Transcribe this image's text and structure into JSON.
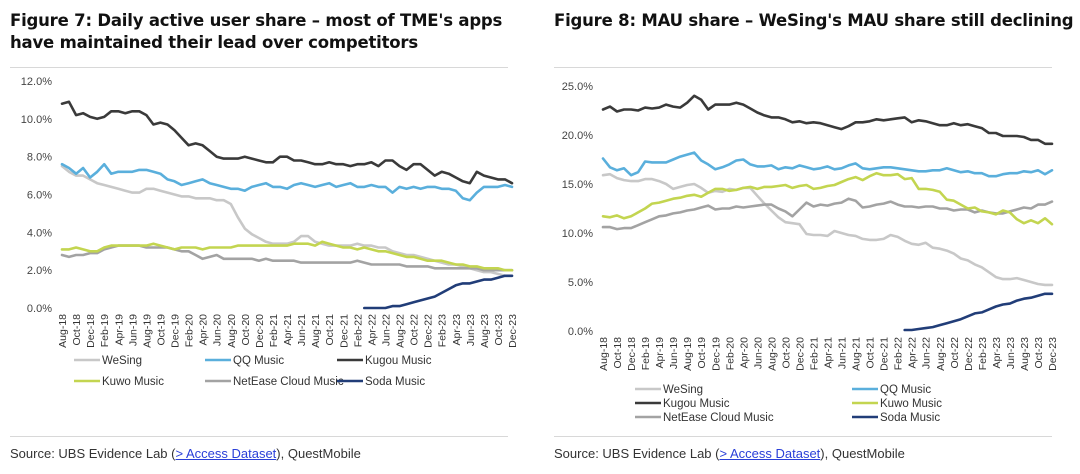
{
  "figure7": {
    "title": "Figure 7: Daily active user share – most of TME's apps have maintained their lead over competitors",
    "source_prefix": "Source: UBS Evidence Lab (",
    "source_link": "> Access Dataset",
    "source_suffix": "), QuestMobile"
  },
  "figure8": {
    "title": "Figure 8: MAU share – WeSing's MAU share still declining",
    "source_prefix": "Source: UBS Evidence Lab (",
    "source_link": "> Access Dataset",
    "source_suffix": "), QuestMobile"
  },
  "colors": {
    "WeSing": "#c8c8c8",
    "QQ Music": "#5aafdc",
    "Kugou Music": "#3a3a3a",
    "Kuwo Music": "#c3d550",
    "NetEase Cloud Music": "#a3a3a3",
    "Soda Music": "#213d78",
    "link": "#2a3fd8"
  },
  "chart_data": [
    {
      "type": "line",
      "title": "Figure 7: Daily active user share – most of TME's apps have maintained their lead over competitors",
      "ylabel": "",
      "xlabel": "",
      "ylim": [
        0,
        12
      ],
      "yticks": [
        "0.0%",
        "2.0%",
        "4.0%",
        "6.0%",
        "8.0%",
        "10.0%",
        "12.0%"
      ],
      "ytick_values": [
        0,
        2,
        4,
        6,
        8,
        10,
        12
      ],
      "x_tick_labels": [
        "Aug-18",
        "Oct-18",
        "Dec-18",
        "Feb-19",
        "Apr-19",
        "Jun-19",
        "Aug-19",
        "Oct-19",
        "Dec-19",
        "Feb-20",
        "Apr-20",
        "Jun-20",
        "Aug-20",
        "Oct-20",
        "Dec-20",
        "Feb-21",
        "Apr-21",
        "Jun-21",
        "Aug-21",
        "Oct-21",
        "Dec-21",
        "Feb-22",
        "Apr-22",
        "Jun-22",
        "Aug-22",
        "Oct-22",
        "Dec-22",
        "Feb-23",
        "Apr-23",
        "Jun-23",
        "Aug-23",
        "Oct-23",
        "Dec-23"
      ],
      "legend": [
        "WeSing",
        "QQ Music",
        "Kugou Music",
        "Kuwo Music",
        "NetEase Cloud Music",
        "Soda Music"
      ],
      "legend_position": "bottom",
      "grid": false,
      "series": [
        {
          "name": "WeSing",
          "start_index": 0,
          "values": [
            7.5,
            7.2,
            7.0,
            7.0,
            6.8,
            6.6,
            6.5,
            6.4,
            6.3,
            6.2,
            6.1,
            6.1,
            6.3,
            6.3,
            6.2,
            6.1,
            6.0,
            5.9,
            5.9,
            5.8,
            5.8,
            5.8,
            5.7,
            5.7,
            5.5,
            4.8,
            4.2,
            3.9,
            3.7,
            3.5,
            3.4,
            3.4,
            3.4,
            3.5,
            3.8,
            3.8,
            3.5,
            3.4,
            3.3,
            3.3,
            3.3,
            3.3,
            3.4,
            3.3,
            3.3,
            3.2,
            3.2,
            3.0,
            2.9,
            2.8,
            2.8,
            2.7,
            2.6,
            2.5,
            2.4,
            2.3,
            2.3,
            2.2,
            2.1,
            2.0,
            1.9,
            1.9,
            1.8,
            1.7,
            1.7
          ]
        },
        {
          "name": "QQ Music",
          "start_index": 0,
          "values": [
            7.6,
            7.4,
            7.1,
            7.4,
            6.9,
            7.2,
            7.6,
            7.1,
            7.2,
            7.2,
            7.2,
            7.3,
            7.3,
            7.2,
            7.1,
            6.8,
            6.7,
            6.5,
            6.6,
            6.7,
            6.8,
            6.6,
            6.5,
            6.4,
            6.3,
            6.3,
            6.2,
            6.4,
            6.5,
            6.6,
            6.4,
            6.4,
            6.3,
            6.5,
            6.6,
            6.5,
            6.4,
            6.5,
            6.6,
            6.4,
            6.5,
            6.6,
            6.4,
            6.4,
            6.5,
            6.4,
            6.4,
            6.1,
            6.4,
            6.3,
            6.4,
            6.3,
            6.4,
            6.4,
            6.3,
            6.3,
            6.2,
            5.8,
            5.7,
            6.1,
            6.4,
            6.4,
            6.4,
            6.5,
            6.4
          ]
        },
        {
          "name": "Kugou Music",
          "start_index": 0,
          "values": [
            10.8,
            10.9,
            10.2,
            10.3,
            10.1,
            10.0,
            10.1,
            10.4,
            10.4,
            10.3,
            10.4,
            10.4,
            10.2,
            9.7,
            9.8,
            9.7,
            9.4,
            9.0,
            8.6,
            8.7,
            8.6,
            8.3,
            8.0,
            7.9,
            7.9,
            7.9,
            8.0,
            7.9,
            7.8,
            7.7,
            7.7,
            8.0,
            8.0,
            7.8,
            7.8,
            7.7,
            7.6,
            7.6,
            7.7,
            7.6,
            7.6,
            7.5,
            7.6,
            7.6,
            7.7,
            7.5,
            7.8,
            7.8,
            7.5,
            7.3,
            7.6,
            7.6,
            7.3,
            7.0,
            7.2,
            7.1,
            6.9,
            6.7,
            6.6,
            7.2,
            7.0,
            6.9,
            6.8,
            6.8,
            6.6
          ]
        },
        {
          "name": "Kuwo Music",
          "start_index": 0,
          "values": [
            3.1,
            3.1,
            3.2,
            3.1,
            3.0,
            3.0,
            3.2,
            3.3,
            3.3,
            3.3,
            3.3,
            3.3,
            3.3,
            3.4,
            3.3,
            3.2,
            3.1,
            3.2,
            3.2,
            3.2,
            3.1,
            3.2,
            3.2,
            3.2,
            3.2,
            3.3,
            3.3,
            3.3,
            3.3,
            3.3,
            3.3,
            3.3,
            3.3,
            3.4,
            3.4,
            3.4,
            3.3,
            3.5,
            3.4,
            3.3,
            3.2,
            3.2,
            3.1,
            3.2,
            3.1,
            3.0,
            3.0,
            2.9,
            2.8,
            2.7,
            2.7,
            2.6,
            2.5,
            2.5,
            2.5,
            2.4,
            2.3,
            2.3,
            2.2,
            2.2,
            2.1,
            2.1,
            2.1,
            2.0,
            2.0
          ]
        },
        {
          "name": "NetEase Cloud Music",
          "start_index": 0,
          "values": [
            2.8,
            2.7,
            2.8,
            2.8,
            2.9,
            2.9,
            3.1,
            3.2,
            3.3,
            3.3,
            3.3,
            3.3,
            3.2,
            3.2,
            3.2,
            3.2,
            3.1,
            3.0,
            3.0,
            2.8,
            2.6,
            2.7,
            2.8,
            2.6,
            2.6,
            2.6,
            2.6,
            2.6,
            2.5,
            2.6,
            2.5,
            2.5,
            2.5,
            2.5,
            2.4,
            2.4,
            2.4,
            2.4,
            2.4,
            2.4,
            2.4,
            2.4,
            2.5,
            2.4,
            2.3,
            2.3,
            2.3,
            2.3,
            2.3,
            2.2,
            2.2,
            2.2,
            2.2,
            2.1,
            2.1,
            2.1,
            2.1,
            2.1,
            2.1,
            2.1,
            2.0,
            2.0,
            2.0,
            2.0,
            2.0
          ]
        },
        {
          "name": "Soda Music",
          "start_index": 43,
          "values": [
            0.0,
            0.0,
            0.0,
            0.0,
            0.1,
            0.1,
            0.2,
            0.3,
            0.4,
            0.5,
            0.6,
            0.8,
            1.0,
            1.2,
            1.3,
            1.3,
            1.4,
            1.5,
            1.5,
            1.6,
            1.7,
            1.7
          ]
        }
      ]
    },
    {
      "type": "line",
      "title": "Figure 8: MAU share – WeSing's MAU share still declining",
      "ylabel": "",
      "xlabel": "",
      "ylim": [
        0,
        25
      ],
      "yticks": [
        "0.0%",
        "5.0%",
        "10.0%",
        "15.0%",
        "20.0%",
        "25.0%"
      ],
      "ytick_values": [
        0,
        5,
        10,
        15,
        20,
        25
      ],
      "x_tick_labels": [
        "Aug-18",
        "Oct-18",
        "Dec-18",
        "Feb-19",
        "Apr-19",
        "Jun-19",
        "Aug-19",
        "Oct-19",
        "Dec-19",
        "Feb-20",
        "Apr-20",
        "Jun-20",
        "Aug-20",
        "Oct-20",
        "Dec-20",
        "Feb-21",
        "Apr-21",
        "Jun-21",
        "Aug-21",
        "Oct-21",
        "Dec-21",
        "Feb-22",
        "Apr-22",
        "Jun-22",
        "Aug-22",
        "Oct-22",
        "Dec-22",
        "Feb-23",
        "Apr-23",
        "Jun-23",
        "Aug-23",
        "Oct-23",
        "Dec-23"
      ],
      "legend": [
        "WeSing",
        "QQ Music",
        "Kugou Music",
        "Kuwo Music",
        "NetEase Cloud Music",
        "Soda Music"
      ],
      "legend_position": "bottom",
      "grid": false,
      "series": [
        {
          "name": "WeSing",
          "start_index": 0,
          "values": [
            15.9,
            16.0,
            15.6,
            15.4,
            15.3,
            15.3,
            15.5,
            15.5,
            15.3,
            15.0,
            14.5,
            14.7,
            14.9,
            15.0,
            14.6,
            14.1,
            14.3,
            14.2,
            14.5,
            14.4,
            14.6,
            14.6,
            13.8,
            13.0,
            12.3,
            11.6,
            11.1,
            11.0,
            10.9,
            9.9,
            9.8,
            9.8,
            9.7,
            10.2,
            10.0,
            9.8,
            9.7,
            9.4,
            9.3,
            9.3,
            9.4,
            9.8,
            9.6,
            9.2,
            8.9,
            8.8,
            9.0,
            8.5,
            8.4,
            8.2,
            7.9,
            7.4,
            7.2,
            6.8,
            6.5,
            6.0,
            5.5,
            5.3,
            5.3,
            5.4,
            5.2,
            5.0,
            4.8,
            4.7,
            4.7
          ]
        },
        {
          "name": "QQ Music",
          "start_index": 0,
          "values": [
            17.6,
            16.7,
            16.4,
            16.6,
            15.9,
            16.2,
            17.3,
            17.2,
            17.2,
            17.2,
            17.5,
            17.8,
            18.0,
            18.2,
            17.4,
            17.0,
            16.5,
            16.7,
            17.0,
            17.4,
            17.5,
            17.0,
            16.8,
            16.8,
            16.9,
            16.5,
            16.7,
            16.6,
            16.9,
            16.7,
            16.5,
            16.6,
            16.8,
            16.5,
            16.6,
            16.9,
            17.1,
            16.6,
            16.5,
            16.6,
            16.7,
            16.7,
            16.6,
            16.5,
            16.4,
            16.3,
            16.3,
            16.4,
            16.4,
            16.6,
            16.4,
            16.2,
            16.3,
            16.1,
            16.1,
            15.8,
            15.8,
            16.0,
            16.1,
            16.1,
            16.3,
            16.2,
            16.4,
            16.0,
            16.4
          ]
        },
        {
          "name": "Kugou Music",
          "start_index": 0,
          "values": [
            22.6,
            22.9,
            22.4,
            22.6,
            22.6,
            22.5,
            22.8,
            22.7,
            22.8,
            23.1,
            22.9,
            22.8,
            23.3,
            24.0,
            23.6,
            22.6,
            23.1,
            23.1,
            23.1,
            23.3,
            23.1,
            22.7,
            22.3,
            22.0,
            21.8,
            21.8,
            21.6,
            21.3,
            21.4,
            21.2,
            21.3,
            21.2,
            21.0,
            20.8,
            20.6,
            20.9,
            21.3,
            21.3,
            21.4,
            21.6,
            21.5,
            21.6,
            21.7,
            21.8,
            21.3,
            21.5,
            21.4,
            21.2,
            21.0,
            21.0,
            21.2,
            21.0,
            21.1,
            20.9,
            20.7,
            20.2,
            20.2,
            19.9,
            19.9,
            19.9,
            19.8,
            19.5,
            19.5,
            19.1,
            19.1
          ]
        },
        {
          "name": "Kuwo Music",
          "start_index": 0,
          "values": [
            11.7,
            11.6,
            11.8,
            11.5,
            11.7,
            12.1,
            12.5,
            13.0,
            13.1,
            13.3,
            13.5,
            13.6,
            13.8,
            13.9,
            13.7,
            14.1,
            14.5,
            14.5,
            14.3,
            14.4,
            14.6,
            14.7,
            14.5,
            14.7,
            14.7,
            14.8,
            14.9,
            14.6,
            14.8,
            14.9,
            14.5,
            14.6,
            14.8,
            14.9,
            15.2,
            15.5,
            15.7,
            15.4,
            15.8,
            16.1,
            15.9,
            15.9,
            16.0,
            15.5,
            15.6,
            14.5,
            14.5,
            14.4,
            14.2,
            13.4,
            13.3,
            12.9,
            12.5,
            12.6,
            12.2,
            12.1,
            11.9,
            12.3,
            12.1,
            11.4,
            11.0,
            11.3,
            11.0,
            11.5,
            10.9
          ]
        },
        {
          "name": "NetEase Cloud Music",
          "start_index": 0,
          "values": [
            10.6,
            10.6,
            10.4,
            10.5,
            10.5,
            10.8,
            11.1,
            11.4,
            11.7,
            11.8,
            12.0,
            12.1,
            12.3,
            12.4,
            12.6,
            12.8,
            12.4,
            12.5,
            12.5,
            12.7,
            12.6,
            12.7,
            12.8,
            12.9,
            12.9,
            12.5,
            12.2,
            11.7,
            12.4,
            13.1,
            12.7,
            12.9,
            12.8,
            13.0,
            13.1,
            13.5,
            13.3,
            12.6,
            12.7,
            12.9,
            13.0,
            13.2,
            12.9,
            12.7,
            12.7,
            12.6,
            12.7,
            12.7,
            12.5,
            12.5,
            12.3,
            12.4,
            12.4,
            12.1,
            12.3,
            12.1,
            12.0,
            12.0,
            12.2,
            12.4,
            12.6,
            12.5,
            12.9,
            12.9,
            13.2
          ]
        },
        {
          "name": "Soda Music",
          "start_index": 43,
          "values": [
            0.1,
            0.1,
            0.2,
            0.3,
            0.4,
            0.6,
            0.8,
            1.0,
            1.2,
            1.5,
            1.8,
            1.9,
            2.2,
            2.5,
            2.7,
            2.8,
            3.1,
            3.3,
            3.4,
            3.6,
            3.8,
            3.8
          ]
        }
      ]
    }
  ]
}
